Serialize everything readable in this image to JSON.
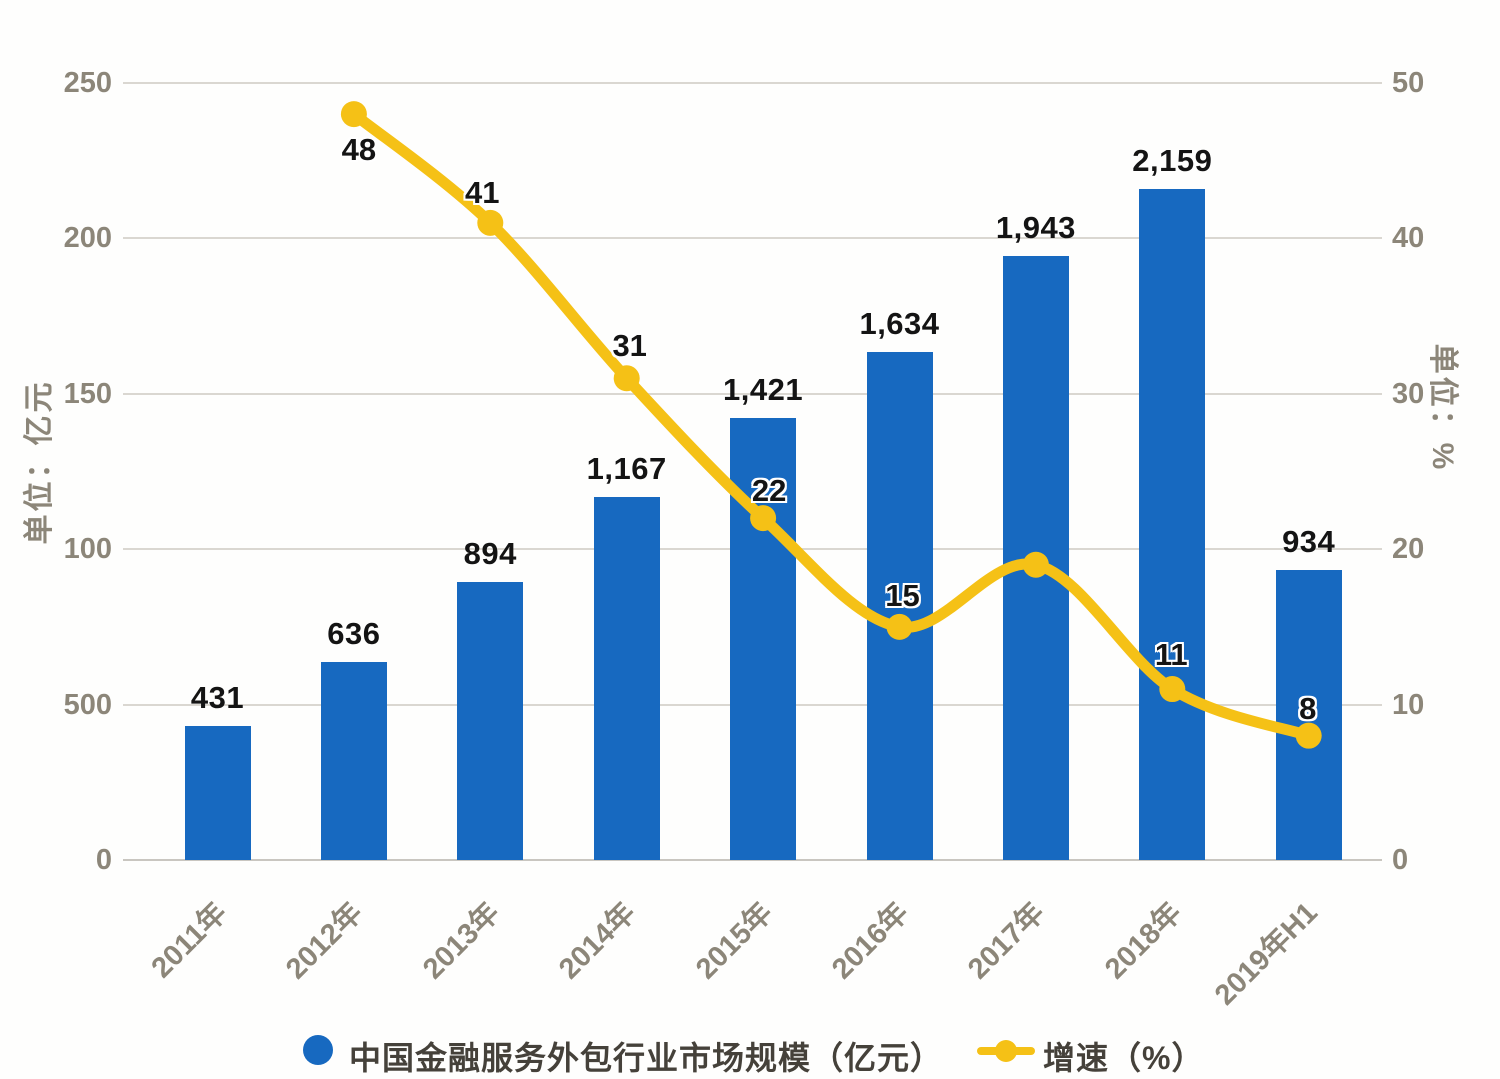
{
  "chart_data": {
    "type": "combo",
    "categories": [
      "2011年",
      "2012年",
      "2013年",
      "2014年",
      "2015年",
      "2016年",
      "2017年",
      "2018年",
      "2019年H1"
    ],
    "series": [
      {
        "name": "中国金融服务外包行业市场规模（亿元）",
        "chart_type": "bar",
        "axis": "left",
        "color": "#1769c0",
        "values": [
          431,
          636,
          894,
          1167,
          1421,
          1634,
          1943,
          2159,
          934
        ],
        "value_labels": [
          "431",
          "636",
          "894",
          "1,167",
          "1,421",
          "1,634",
          "1,943",
          "2,159",
          "934"
        ]
      },
      {
        "name": "增速（%）",
        "chart_type": "line",
        "axis": "right",
        "color": "#f5c116",
        "start_category_index": 1,
        "values": [
          48,
          41,
          31,
          22,
          15,
          19,
          11,
          8
        ],
        "value_labels": [
          "48",
          "41",
          "31",
          "22",
          "15",
          "",
          "11",
          "8"
        ],
        "label_offsets": [
          [
            5,
            36
          ],
          [
            -8,
            -30
          ],
          [
            3,
            -32
          ],
          [
            6,
            -27
          ],
          [
            3,
            -31
          ],
          [
            0,
            0
          ],
          [
            -1,
            -34
          ],
          [
            -1,
            -27
          ]
        ]
      }
    ],
    "left_axis": {
      "title": "单位：亿元",
      "tick_labels_bottom_to_top": [
        "0",
        "500",
        "100",
        "150",
        "200",
        "250"
      ],
      "effective_range": [
        0,
        2500
      ]
    },
    "right_axis": {
      "title": "单位：%",
      "tick_labels_bottom_to_top": [
        "0",
        "10",
        "20",
        "30",
        "40",
        "50"
      ],
      "range": [
        0,
        50
      ]
    },
    "grid": true,
    "legend_position": "bottom"
  },
  "legend": {
    "items": [
      {
        "label": "中国金融服务外包行业市场规模（亿元）",
        "marker": "dot",
        "color": "#1769c0"
      },
      {
        "label": "增速（%）",
        "marker": "line-dot",
        "color": "#f5c116"
      }
    ]
  },
  "colors": {
    "bar": "#1769c0",
    "line": "#f5c116",
    "grid": "#dad7d1",
    "tick_text": "#8c8679",
    "value_text": "#141414",
    "legend_text": "#45413a",
    "background": "#fefefd"
  }
}
